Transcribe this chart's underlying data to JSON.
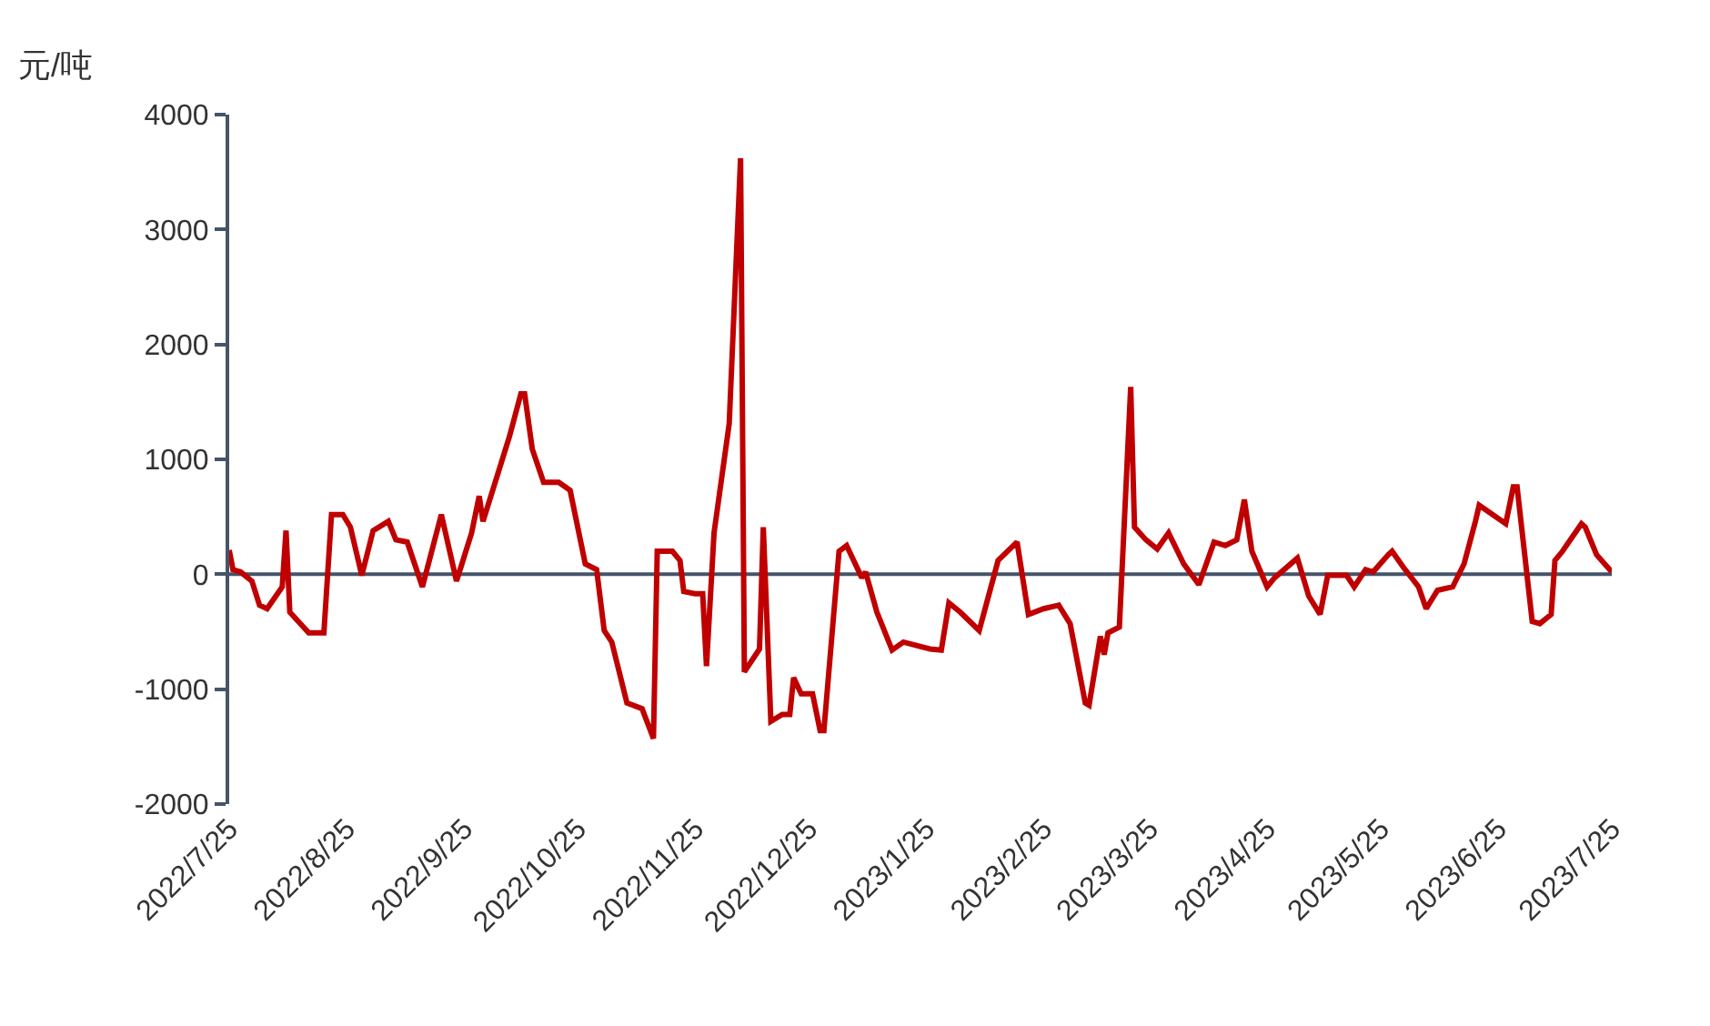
{
  "chart_data": {
    "type": "line",
    "ylabel": "元/吨",
    "x": [
      "2022-07-25",
      "2022-07-26",
      "2022-07-28",
      "2022-07-31",
      "2022-08-02",
      "2022-08-04",
      "2022-08-08",
      "2022-08-09",
      "2022-08-10",
      "2022-08-15",
      "2022-08-19",
      "2022-08-21",
      "2022-08-24",
      "2022-08-26",
      "2022-08-29",
      "2022-09-01",
      "2022-09-05",
      "2022-09-07",
      "2022-09-10",
      "2022-09-14",
      "2022-09-19",
      "2022-09-23",
      "2022-09-27",
      "2022-09-29",
      "2022-09-30",
      "2022-10-07",
      "2022-10-10",
      "2022-10-11",
      "2022-10-13",
      "2022-10-16",
      "2022-10-20",
      "2022-10-23",
      "2022-10-27",
      "2022-10-30",
      "2022-11-01",
      "2022-11-03",
      "2022-11-07",
      "2022-11-11",
      "2022-11-14",
      "2022-11-15",
      "2022-11-19",
      "2022-11-21",
      "2022-11-22",
      "2022-11-25",
      "2022-11-27",
      "2022-11-28",
      "2022-11-30",
      "2022-12-04",
      "2022-12-07",
      "2022-12-08",
      "2022-12-12",
      "2022-12-13",
      "2022-12-15",
      "2022-12-18",
      "2022-12-20",
      "2022-12-21",
      "2022-12-23",
      "2022-12-26",
      "2022-12-28",
      "2022-12-29",
      "2023-01-02",
      "2023-01-04",
      "2023-01-08",
      "2023-01-09",
      "2023-01-12",
      "2023-01-16",
      "2023-01-19",
      "2023-01-26",
      "2023-01-29",
      "2023-01-31",
      "2023-02-03",
      "2023-02-08",
      "2023-02-13",
      "2023-02-18",
      "2023-02-21",
      "2023-02-25",
      "2023-03-01",
      "2023-03-04",
      "2023-03-08",
      "2023-03-09",
      "2023-03-12",
      "2023-03-13",
      "2023-03-14",
      "2023-03-17",
      "2023-03-20",
      "2023-03-21",
      "2023-03-24",
      "2023-03-27",
      "2023-03-30",
      "2023-04-03",
      "2023-04-07",
      "2023-04-11",
      "2023-04-14",
      "2023-04-17",
      "2023-04-19",
      "2023-04-21",
      "2023-04-25",
      "2023-04-27",
      "2023-05-03",
      "2023-05-06",
      "2023-05-09",
      "2023-05-11",
      "2023-05-16",
      "2023-05-18",
      "2023-05-21",
      "2023-05-23",
      "2023-05-27",
      "2023-05-28",
      "2023-05-31",
      "2023-06-04",
      "2023-06-06",
      "2023-06-09",
      "2023-06-13",
      "2023-06-16",
      "2023-06-19",
      "2023-06-20",
      "2023-06-27",
      "2023-06-29",
      "2023-06-30",
      "2023-07-04",
      "2023-07-06",
      "2023-07-09",
      "2023-07-10",
      "2023-07-12",
      "2023-07-17",
      "2023-07-18",
      "2023-07-21",
      "2023-07-25"
    ],
    "series": [
      {
        "color": "#c00000",
        "values": [
          210,
          40,
          20,
          -60,
          -270,
          -300,
          -110,
          380,
          -330,
          -510,
          -510,
          520,
          520,
          410,
          -10,
          380,
          460,
          300,
          280,
          -110,
          520,
          -60,
          360,
          680,
          460,
          1200,
          1570,
          1570,
          1090,
          800,
          800,
          730,
          90,
          40,
          -490,
          -590,
          -1120,
          -1170,
          -1430,
          200,
          200,
          120,
          -150,
          -170,
          -170,
          -800,
          360,
          1310,
          3620,
          -850,
          -650,
          410,
          -1280,
          -1220,
          -1220,
          -900,
          -1040,
          -1040,
          -1360,
          -1360,
          200,
          250,
          -30,
          20,
          -330,
          -660,
          -590,
          -650,
          -660,
          -250,
          -330,
          -490,
          120,
          280,
          -350,
          -300,
          -270,
          -430,
          -1120,
          -1140,
          -540,
          -700,
          -510,
          -460,
          1630,
          410,
          300,
          220,
          360,
          90,
          -90,
          280,
          250,
          300,
          650,
          200,
          -110,
          -30,
          140,
          -190,
          -350,
          -10,
          -10,
          -110,
          40,
          20,
          170,
          200,
          60,
          -110,
          -300,
          -140,
          -110,
          90,
          460,
          600,
          440,
          760,
          760,
          -410,
          -430,
          -350,
          120,
          200,
          440,
          410,
          170,
          20
        ]
      }
    ],
    "xlim": [
      "2022-07-25",
      "2023-07-25"
    ],
    "xticks": [
      {
        "value": "2022-07-25",
        "label": "2022/7/25"
      },
      {
        "value": "2022-08-25",
        "label": "2022/8/25"
      },
      {
        "value": "2022-09-25",
        "label": "2022/9/25"
      },
      {
        "value": "2022-10-25",
        "label": "2022/10/25"
      },
      {
        "value": "2022-11-25",
        "label": "2022/11/25"
      },
      {
        "value": "2022-12-25",
        "label": "2022/12/25"
      },
      {
        "value": "2023-01-25",
        "label": "2023/1/25"
      },
      {
        "value": "2023-02-25",
        "label": "2023/2/25"
      },
      {
        "value": "2023-03-25",
        "label": "2023/3/25"
      },
      {
        "value": "2023-04-25",
        "label": "2023/4/25"
      },
      {
        "value": "2023-05-25",
        "label": "2023/5/25"
      },
      {
        "value": "2023-06-25",
        "label": "2023/6/25"
      },
      {
        "value": "2023-07-25",
        "label": "2023/7/25"
      }
    ],
    "ylim": [
      -2000,
      4000
    ],
    "yticks": [
      -2000,
      -1000,
      0,
      1000,
      2000,
      3000,
      4000
    ],
    "ref_lines": [
      {
        "axis": "y",
        "value": 0,
        "color": "#44546a",
        "line_style": "solid"
      }
    ],
    "grid": false,
    "marker": "none",
    "line_style": "solid"
  }
}
